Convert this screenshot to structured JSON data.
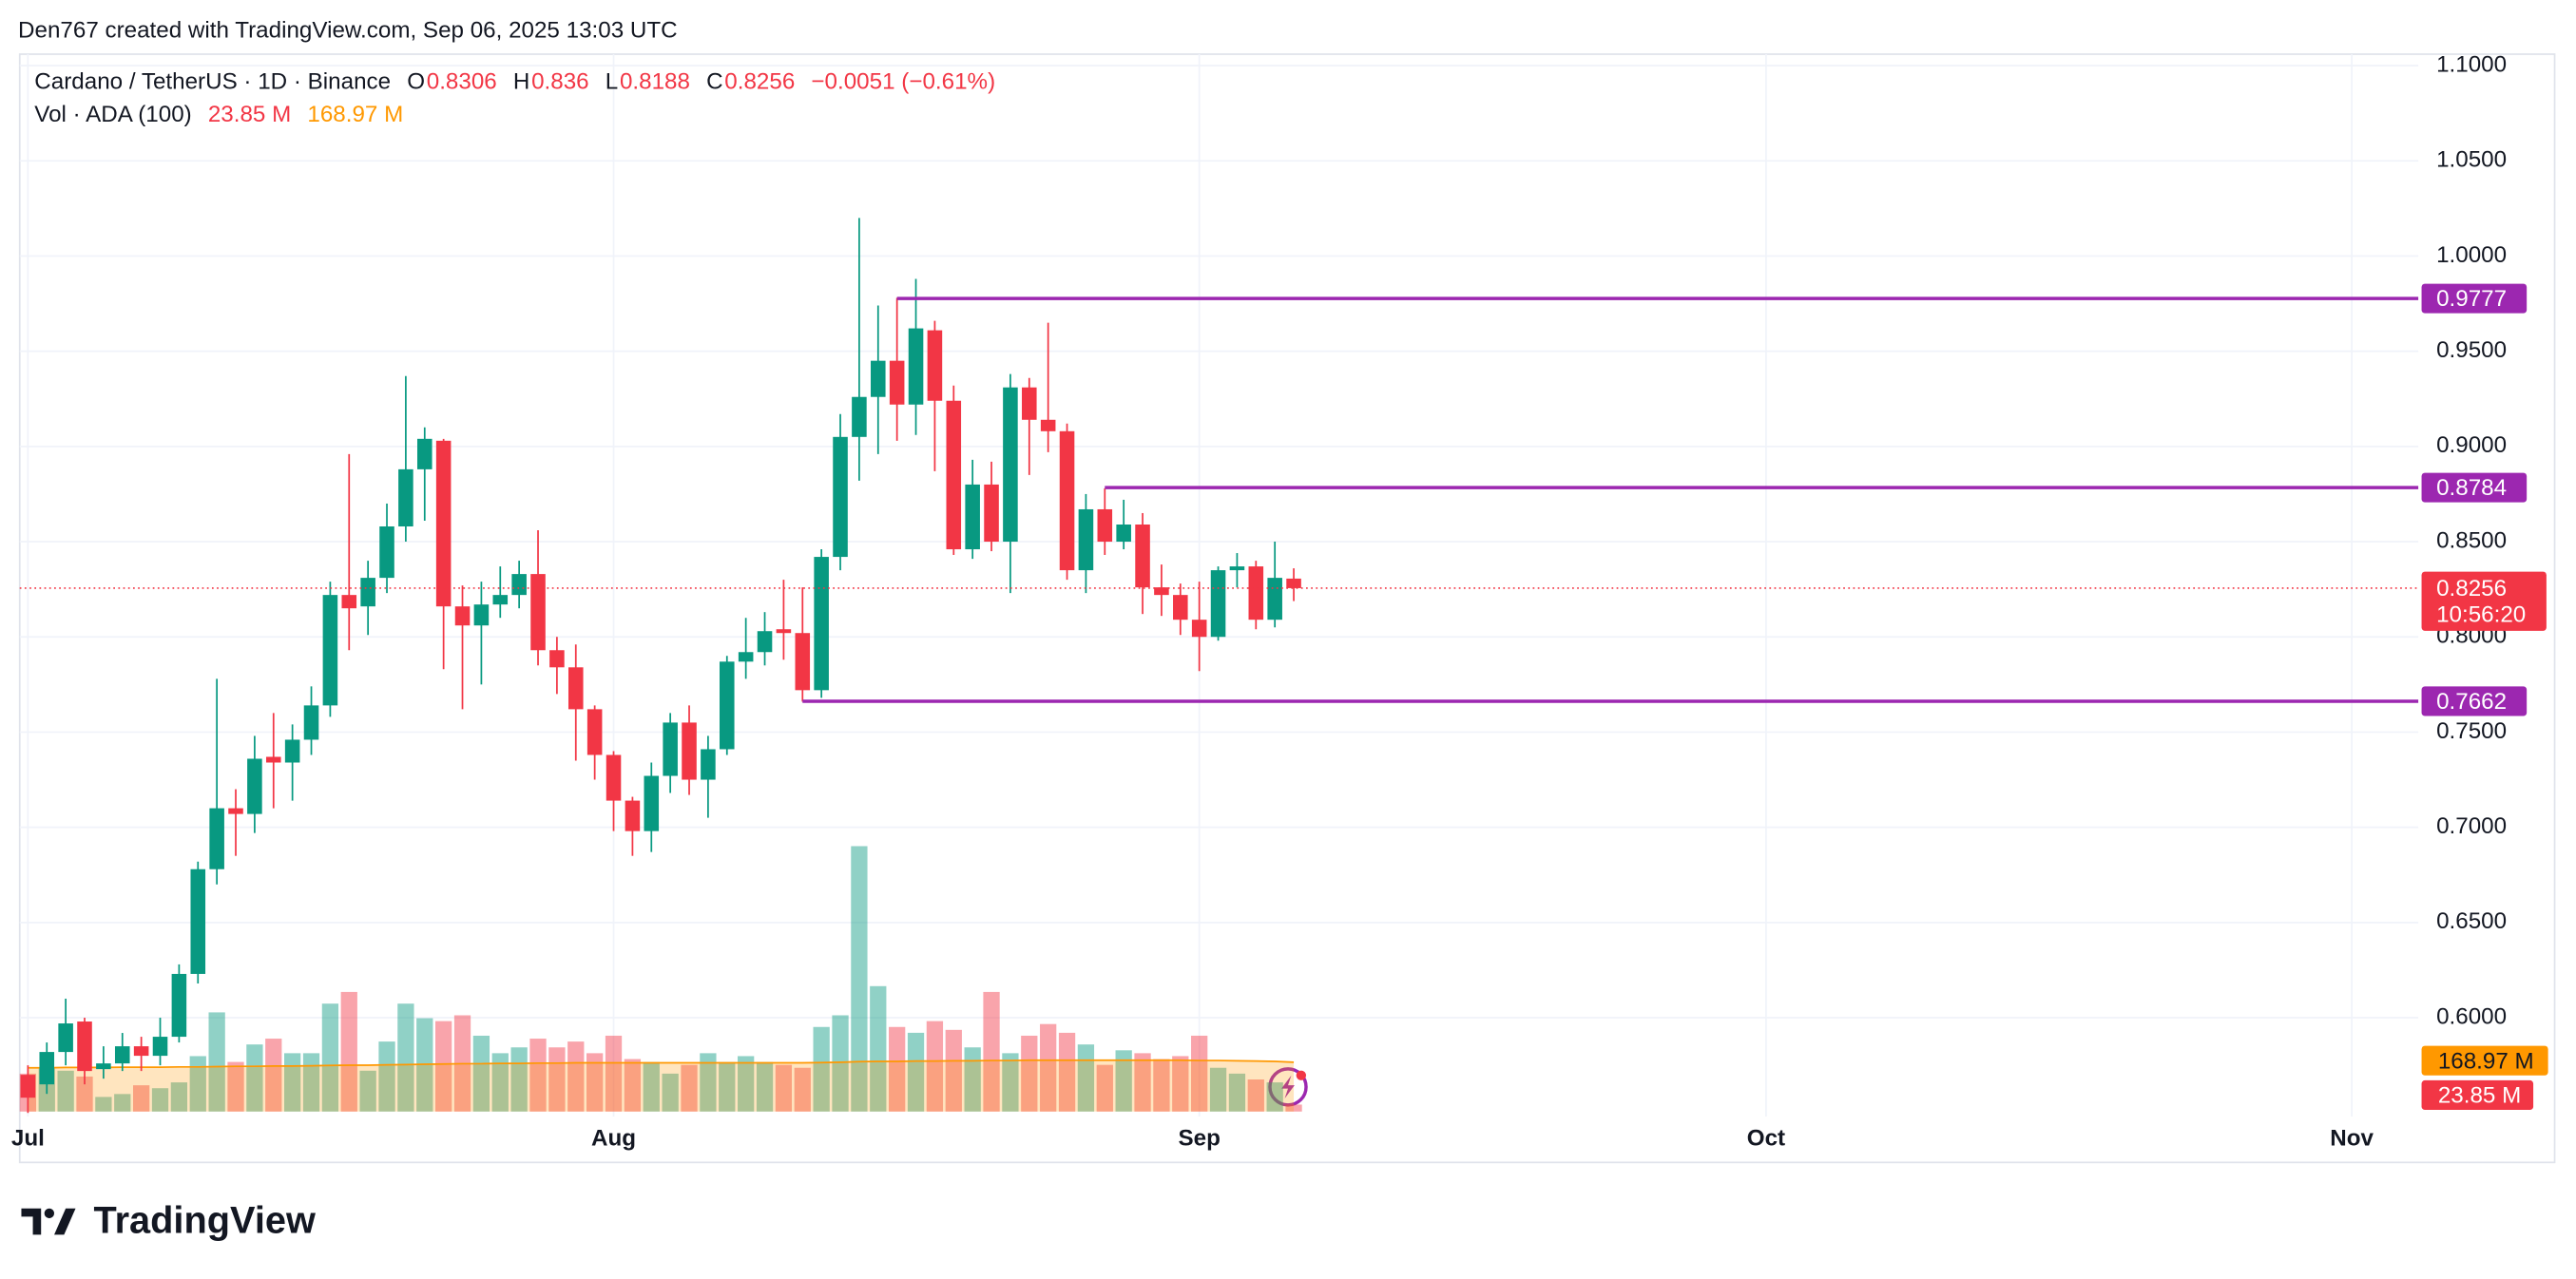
{
  "attribution": "Den767 created with TradingView.com, Sep 06, 2025 13:03 UTC",
  "logo": "TradingView",
  "chart_data": {
    "type": "candlestick",
    "title": "Cardano / TetherUS · 1D · Binance",
    "ohlc_keys": [
      "O",
      "H",
      "L",
      "C"
    ],
    "change": "−0.0051 (−0.61%)",
    "volume_title": "Vol · ADA (100)",
    "volume_label": "23.85 M",
    "volume_ma_label": "168.97 M",
    "countdown": "10:56:20",
    "up_color": "#089981",
    "down_color": "#f23645",
    "level_color": "#9c27b0",
    "ma_color": "#ff9800",
    "grid": true,
    "open": [
      0.57,
      0.565,
      0.582,
      0.598,
      0.573,
      0.576,
      0.585,
      0.58,
      0.59,
      0.623,
      0.678,
      0.71,
      0.707,
      0.737,
      0.734,
      0.746,
      0.764,
      0.822,
      0.816,
      0.831,
      0.858,
      0.888,
      0.903,
      0.816,
      0.806,
      0.817,
      0.822,
      0.833,
      0.793,
      0.784,
      0.762,
      0.738,
      0.714,
      0.698,
      0.727,
      0.755,
      0.725,
      0.741,
      0.787,
      0.792,
      0.804,
      0.802,
      0.772,
      0.842,
      0.905,
      0.926,
      0.945,
      0.922,
      0.961,
      0.924,
      0.846,
      0.88,
      0.85,
      0.931,
      0.914,
      0.908,
      0.835,
      0.867,
      0.85,
      0.859,
      0.826,
      0.822,
      0.809,
      0.8,
      0.835,
      0.837,
      0.809,
      0.8306
    ],
    "high": [
      0.575,
      0.587,
      0.61,
      0.6,
      0.585,
      0.592,
      0.59,
      0.6,
      0.628,
      0.682,
      0.778,
      0.72,
      0.748,
      0.76,
      0.754,
      0.774,
      0.829,
      0.896,
      0.84,
      0.87,
      0.937,
      0.91,
      0.904,
      0.827,
      0.829,
      0.837,
      0.84,
      0.856,
      0.8,
      0.796,
      0.764,
      0.74,
      0.716,
      0.734,
      0.76,
      0.764,
      0.748,
      0.79,
      0.81,
      0.813,
      0.83,
      0.826,
      0.846,
      0.917,
      1.02,
      0.974,
      0.978,
      0.988,
      0.966,
      0.932,
      0.893,
      0.892,
      0.938,
      0.936,
      0.965,
      0.912,
      0.875,
      0.878,
      0.872,
      0.865,
      0.838,
      0.828,
      0.829,
      0.837,
      0.844,
      0.84,
      0.85,
      0.836
    ],
    "low": [
      0.55,
      0.56,
      0.575,
      0.565,
      0.568,
      0.572,
      0.572,
      0.575,
      0.587,
      0.618,
      0.67,
      0.685,
      0.697,
      0.71,
      0.714,
      0.738,
      0.758,
      0.793,
      0.801,
      0.823,
      0.85,
      0.861,
      0.783,
      0.762,
      0.775,
      0.81,
      0.815,
      0.785,
      0.77,
      0.735,
      0.725,
      0.698,
      0.685,
      0.687,
      0.718,
      0.717,
      0.705,
      0.738,
      0.778,
      0.785,
      0.788,
      0.766,
      0.768,
      0.835,
      0.882,
      0.896,
      0.903,
      0.906,
      0.887,
      0.843,
      0.841,
      0.845,
      0.823,
      0.885,
      0.897,
      0.83,
      0.823,
      0.843,
      0.846,
      0.812,
      0.811,
      0.801,
      0.782,
      0.798,
      0.826,
      0.804,
      0.805,
      0.8188
    ],
    "close": [
      0.558,
      0.582,
      0.597,
      0.572,
      0.576,
      0.585,
      0.58,
      0.59,
      0.623,
      0.678,
      0.71,
      0.707,
      0.736,
      0.734,
      0.746,
      0.764,
      0.822,
      0.815,
      0.831,
      0.858,
      0.888,
      0.904,
      0.816,
      0.806,
      0.817,
      0.822,
      0.833,
      0.793,
      0.784,
      0.762,
      0.738,
      0.714,
      0.698,
      0.727,
      0.755,
      0.725,
      0.741,
      0.787,
      0.792,
      0.803,
      0.802,
      0.772,
      0.842,
      0.905,
      0.926,
      0.945,
      0.922,
      0.962,
      0.924,
      0.846,
      0.88,
      0.85,
      0.931,
      0.914,
      0.908,
      0.835,
      0.867,
      0.85,
      0.859,
      0.826,
      0.822,
      0.809,
      0.8,
      0.835,
      0.837,
      0.809,
      0.831,
      0.8256
    ],
    "volume": [
      130,
      150,
      140,
      120,
      50,
      60,
      90,
      80,
      100,
      190,
      340,
      170,
      230,
      250,
      200,
      200,
      370,
      410,
      140,
      240,
      370,
      320,
      310,
      330,
      260,
      200,
      220,
      250,
      220,
      240,
      200,
      260,
      180,
      170,
      130,
      160,
      200,
      170,
      190,
      170,
      160,
      150,
      290,
      330,
      910,
      430,
      290,
      270,
      310,
      280,
      220,
      410,
      200,
      260,
      300,
      270,
      230,
      160,
      210,
      200,
      180,
      190,
      260,
      150,
      130,
      110,
      100,
      23.85
    ],
    "volume_ma": [
      150,
      150,
      151,
      151,
      151,
      152,
      152,
      152,
      153,
      153,
      154,
      155,
      155,
      156,
      156,
      157,
      158,
      159,
      159,
      160,
      161,
      162,
      163,
      164,
      164,
      165,
      165,
      166,
      166,
      167,
      167,
      167,
      167,
      167,
      167,
      167,
      167,
      167,
      167,
      167,
      167,
      167,
      168,
      169,
      171,
      172,
      172,
      173,
      173,
      174,
      174,
      175,
      175,
      176,
      176,
      176,
      176,
      176,
      176,
      176,
      176,
      176,
      175,
      175,
      174,
      173,
      172,
      168.97
    ],
    "levels": [
      0.9777,
      0.8784,
      0.7662
    ],
    "ylim": [
      0.524,
      1.106
    ],
    "yticks": [
      {
        "value": 1.1,
        "label": "1.1000"
      },
      {
        "value": 1.05,
        "label": "1.0500"
      },
      {
        "value": 1.0,
        "label": "1.0000"
      },
      {
        "value": 0.95,
        "label": "0.9500"
      },
      {
        "value": 0.9,
        "label": "0.9000"
      },
      {
        "value": 0.85,
        "label": "0.8500"
      },
      {
        "value": 0.8,
        "label": "0.8000"
      },
      {
        "value": 0.75,
        "label": "0.7500"
      },
      {
        "value": 0.7,
        "label": "0.7000"
      },
      {
        "value": 0.65,
        "label": "0.6500"
      },
      {
        "value": 0.6,
        "label": "0.6000"
      }
    ],
    "xticks": [
      "Jul",
      "Aug",
      "Sep",
      "Oct",
      "Nov"
    ]
  }
}
